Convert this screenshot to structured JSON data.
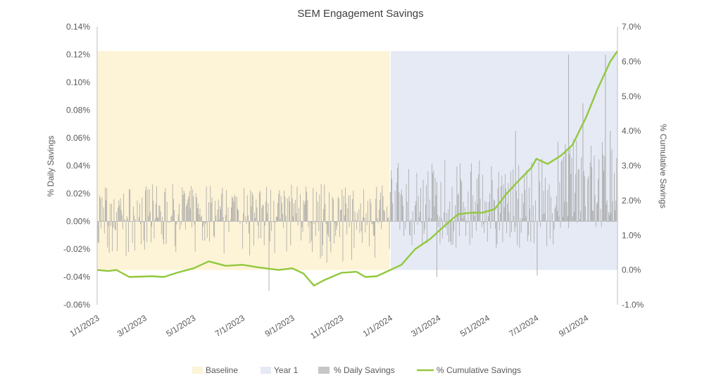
{
  "chart_data": {
    "type": "line",
    "title": "SEM Engagement Savings",
    "ylabel_left": "% Daily Savings",
    "ylabel_right": "% Cumulative Savings",
    "y_left_range": [
      -0.06,
      0.14
    ],
    "y_left_ticks": [
      "-0.06%",
      "-0.04%",
      "-0.02%",
      "0.00%",
      "0.02%",
      "0.04%",
      "0.06%",
      "0.08%",
      "0.10%",
      "0.12%",
      "0.14%"
    ],
    "y_right_range": [
      -1.0,
      7.0
    ],
    "y_right_ticks": [
      "-1.0%",
      "0.0%",
      "1.0%",
      "2.0%",
      "3.0%",
      "4.0%",
      "5.0%",
      "6.0%",
      "7.0%"
    ],
    "x_range": [
      "2023-01-01",
      "2024-10-10"
    ],
    "x_ticks": [
      {
        "label": "1/1/2023",
        "date": "2023-01-01"
      },
      {
        "label": "3/1/2023",
        "date": "2023-03-01"
      },
      {
        "label": "5/1/2023",
        "date": "2023-05-01"
      },
      {
        "label": "7/1/2023",
        "date": "2023-07-01"
      },
      {
        "label": "9/1/2023",
        "date": "2023-09-01"
      },
      {
        "label": "11/1/2023",
        "date": "2023-11-01"
      },
      {
        "label": "1/1/2024",
        "date": "2024-01-01"
      },
      {
        "label": "3/1/2024",
        "date": "2024-03-01"
      },
      {
        "label": "5/1/2024",
        "date": "2024-05-01"
      },
      {
        "label": "7/1/2024",
        "date": "2024-07-01"
      },
      {
        "label": "9/1/2024",
        "date": "2024-09-01"
      }
    ],
    "grid": false,
    "legend_position": "bottom",
    "periods": [
      {
        "name": "Baseline",
        "start": "2023-01-01",
        "end": "2024-01-01",
        "color": "#fdf3d6",
        "y_right_range": [
          0.0,
          6.3
        ]
      },
      {
        "name": "Year 1",
        "start": "2024-01-01",
        "end": "2024-10-10",
        "color": "#e5eaf4",
        "y_right_range": [
          0.0,
          6.3
        ]
      }
    ],
    "series": [
      {
        "name": "% Daily Savings",
        "type": "bar",
        "axis": "left",
        "color": "#a6a6a6",
        "segments": [
          {
            "start": "2023-01-01",
            "end": "2023-07-01",
            "low": -0.025,
            "high": 0.027
          },
          {
            "start": "2023-07-01",
            "end": "2024-01-01",
            "low": -0.03,
            "high": 0.027
          },
          {
            "start": "2024-01-01",
            "end": "2024-05-01",
            "low": -0.02,
            "high": 0.045
          },
          {
            "start": "2024-05-01",
            "end": "2024-07-25",
            "low": -0.02,
            "high": 0.045
          },
          {
            "start": "2024-07-25",
            "end": "2024-10-10",
            "low": -0.005,
            "high": 0.06
          }
        ]
      },
      {
        "name": "% Cumulative Savings",
        "type": "line",
        "axis": "right",
        "color": "#92c83e",
        "points": [
          {
            "x": "2023-01-01",
            "y": 0.0
          },
          {
            "x": "2023-01-15",
            "y": -0.03
          },
          {
            "x": "2023-01-25",
            "y": 0.0
          },
          {
            "x": "2023-02-10",
            "y": -0.2
          },
          {
            "x": "2023-03-10",
            "y": -0.18
          },
          {
            "x": "2023-03-25",
            "y": -0.2
          },
          {
            "x": "2023-04-10",
            "y": -0.08
          },
          {
            "x": "2023-05-01",
            "y": 0.05
          },
          {
            "x": "2023-05-20",
            "y": 0.25
          },
          {
            "x": "2023-06-10",
            "y": 0.12
          },
          {
            "x": "2023-07-01",
            "y": 0.15
          },
          {
            "x": "2023-07-20",
            "y": 0.08
          },
          {
            "x": "2023-08-15",
            "y": 0.0
          },
          {
            "x": "2023-09-01",
            "y": 0.05
          },
          {
            "x": "2023-09-15",
            "y": -0.1
          },
          {
            "x": "2023-09-28",
            "y": -0.45
          },
          {
            "x": "2023-10-10",
            "y": -0.3
          },
          {
            "x": "2023-11-01",
            "y": -0.08
          },
          {
            "x": "2023-11-20",
            "y": -0.05
          },
          {
            "x": "2023-12-01",
            "y": -0.2
          },
          {
            "x": "2023-12-15",
            "y": -0.18
          },
          {
            "x": "2024-01-01",
            "y": 0.0
          },
          {
            "x": "2024-01-15",
            "y": 0.15
          },
          {
            "x": "2024-02-01",
            "y": 0.6
          },
          {
            "x": "2024-02-20",
            "y": 0.9
          },
          {
            "x": "2024-03-10",
            "y": 1.3
          },
          {
            "x": "2024-03-25",
            "y": 1.6
          },
          {
            "x": "2024-04-10",
            "y": 1.65
          },
          {
            "x": "2024-04-25",
            "y": 1.65
          },
          {
            "x": "2024-05-10",
            "y": 1.75
          },
          {
            "x": "2024-05-25",
            "y": 2.2
          },
          {
            "x": "2024-06-10",
            "y": 2.6
          },
          {
            "x": "2024-06-25",
            "y": 2.95
          },
          {
            "x": "2024-07-01",
            "y": 3.2
          },
          {
            "x": "2024-07-15",
            "y": 3.05
          },
          {
            "x": "2024-08-01",
            "y": 3.3
          },
          {
            "x": "2024-08-15",
            "y": 3.6
          },
          {
            "x": "2024-09-01",
            "y": 4.4
          },
          {
            "x": "2024-09-15",
            "y": 5.2
          },
          {
            "x": "2024-10-01",
            "y": 6.0
          },
          {
            "x": "2024-10-10",
            "y": 6.3
          }
        ]
      }
    ]
  }
}
